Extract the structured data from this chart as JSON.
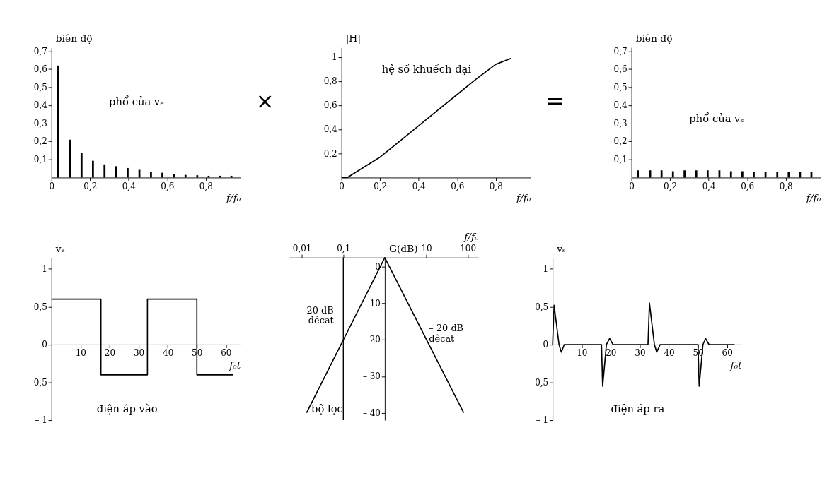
{
  "chart_data": [
    {
      "type": "bar",
      "ylabel": "biên độ",
      "xlabel": "f/f₀",
      "annotations": [
        "phổ của vₑ",
        "×"
      ],
      "color": "#000000",
      "x": [
        0.033,
        0.097,
        0.156,
        0.215,
        0.275,
        0.336,
        0.395,
        0.456,
        0.516,
        0.575,
        0.634,
        0.695,
        0.756,
        0.815,
        0.874,
        0.933
      ],
      "values": [
        0.62,
        0.21,
        0.135,
        0.093,
        0.073,
        0.063,
        0.053,
        0.043,
        0.033,
        0.027,
        0.02,
        0.015,
        0.013,
        0.01,
        0.01,
        0.01
      ],
      "xlim": [
        0,
        0.98
      ],
      "ylim": [
        0,
        0.72
      ],
      "xticks": [
        0,
        {
          "value": 0.2,
          "label": "0,2"
        },
        {
          "value": 0.4,
          "label": "0,4"
        },
        {
          "value": 0.6,
          "label": "0,6"
        },
        {
          "value": 0.8,
          "label": "0,8"
        }
      ],
      "yticks": [
        {
          "value": 0.1,
          "label": "0,1"
        },
        {
          "value": 0.2,
          "label": "0,2"
        },
        {
          "value": 0.3,
          "label": "0,3"
        },
        {
          "value": 0.4,
          "label": "0,4"
        },
        {
          "value": 0.5,
          "label": "0,5"
        },
        {
          "value": 0.6,
          "label": "0,6"
        },
        {
          "value": 0.7,
          "label": "0,7"
        }
      ]
    },
    {
      "type": "line",
      "ylabel": "|H|",
      "xlabel": "f/f₀",
      "annotations": [
        "hệ số khuếch đại",
        "="
      ],
      "color": "#000000",
      "x": [
        0,
        0.03,
        0.1,
        0.2,
        0.3,
        0.4,
        0.5,
        0.6,
        0.7,
        0.8,
        0.88
      ],
      "values": [
        0,
        0,
        0.07,
        0.17,
        0.3,
        0.43,
        0.56,
        0.69,
        0.82,
        0.94,
        0.99
      ],
      "xlim": [
        0,
        0.98
      ],
      "ylim": [
        0,
        1.08
      ],
      "xticks": [
        0,
        {
          "value": 0.2,
          "label": "0,2"
        },
        {
          "value": 0.4,
          "label": "0,4"
        },
        {
          "value": 0.6,
          "label": "0,6"
        },
        {
          "value": 0.8,
          "label": "0,8"
        }
      ],
      "yticks": [
        {
          "value": 0.2,
          "label": "0,2"
        },
        {
          "value": 0.4,
          "label": "0,4"
        },
        {
          "value": 0.6,
          "label": "0,6"
        },
        {
          "value": 0.8,
          "label": "0,8"
        },
        1
      ]
    },
    {
      "type": "bar",
      "ylabel": "biên độ",
      "xlabel": "f/f₀",
      "annotations": [
        "phổ của vₛ"
      ],
      "color": "#000000",
      "x": [
        0.033,
        0.097,
        0.156,
        0.215,
        0.275,
        0.336,
        0.395,
        0.456,
        0.516,
        0.575,
        0.634,
        0.695,
        0.756,
        0.815,
        0.874,
        0.933
      ],
      "values": [
        0.04,
        0.04,
        0.04,
        0.035,
        0.04,
        0.04,
        0.04,
        0.04,
        0.035,
        0.035,
        0.03,
        0.03,
        0.03,
        0.03,
        0.03,
        0.03
      ],
      "xlim": [
        0,
        0.98
      ],
      "ylim": [
        0,
        0.72
      ],
      "xticks": [
        0,
        {
          "value": 0.2,
          "label": "0,2"
        },
        {
          "value": 0.4,
          "label": "0,4"
        },
        {
          "value": 0.6,
          "label": "0,6"
        },
        {
          "value": 0.8,
          "label": "0,8"
        }
      ],
      "yticks": [
        {
          "value": 0.1,
          "label": "0,1"
        },
        {
          "value": 0.2,
          "label": "0,2"
        },
        {
          "value": 0.3,
          "label": "0,3"
        },
        {
          "value": 0.4,
          "label": "0,4"
        },
        {
          "value": 0.5,
          "label": "0,5"
        },
        {
          "value": 0.6,
          "label": "0,6"
        },
        {
          "value": 0.7,
          "label": "0,7"
        }
      ]
    },
    {
      "type": "line",
      "ylabel": "vₑ",
      "xlabel": "f₀t",
      "annotations": [
        "điện áp vào"
      ],
      "color": "#000000",
      "x": [
        0,
        17,
        17,
        33,
        33,
        50,
        50,
        62.5
      ],
      "values": [
        0.6,
        0.6,
        -0.4,
        -0.4,
        0.6,
        0.6,
        -0.4,
        -0.4
      ],
      "xlim": [
        0,
        65
      ],
      "ylim": [
        -1,
        1.15
      ],
      "xticks": [
        10,
        20,
        30,
        40,
        50,
        60
      ],
      "yticks": [
        {
          "value": -1,
          "label": "– 1"
        },
        {
          "value": -0.5,
          "label": "– 0,5"
        },
        0,
        {
          "value": 0.5,
          "label": "0,5"
        },
        1
      ]
    },
    {
      "type": "line",
      "ylabel": "G(dB)",
      "xlabel": "f/f₀",
      "log": "x",
      "color": "#000000",
      "annotations": [
        "bộ lọc",
        {
          "text": "20 dB\ndêcat",
          "x": 0.25,
          "y": -12
        },
        {
          "text": "– 20 dB\ndêcat",
          "x": 7,
          "y": -17
        }
      ],
      "x": [
        0.013,
        1,
        80
      ],
      "values": [
        -40,
        2.5,
        -40
      ],
      "xlim": [
        0.005,
        180
      ],
      "ylim": [
        -42,
        2.5
      ],
      "xticks": [
        {
          "value": 0.01,
          "label": "0,01"
        },
        {
          "value": 0.1,
          "label": "0,1"
        },
        10,
        100
      ],
      "yticks": [
        {
          "value": -40,
          "label": "– 40"
        },
        {
          "value": -30,
          "label": "– 30"
        },
        {
          "value": -20,
          "label": "– 20"
        },
        {
          "value": -10,
          "label": "– 10"
        },
        0
      ],
      "ref_lines": [
        {
          "axis": "x",
          "value": 0.1,
          "color": "#000000"
        }
      ]
    },
    {
      "type": "line",
      "ylabel": "vₛ",
      "xlabel": "f₀t",
      "annotations": [
        "điện áp ra"
      ],
      "color": "#000000",
      "x": [
        0,
        0.5,
        2.2,
        3,
        4,
        16.8,
        17.2,
        18.5,
        19.6,
        20.8,
        32.8,
        33.3,
        35,
        35.8,
        37,
        50,
        50.4,
        51.7,
        52.6,
        53.8,
        62.6
      ],
      "values": [
        0,
        0.52,
        0,
        -0.1,
        0,
        0,
        -0.55,
        0,
        0.08,
        0,
        0,
        0.55,
        0,
        -0.1,
        0,
        0,
        -0.55,
        0,
        0.08,
        0,
        0
      ],
      "xlim": [
        0,
        65
      ],
      "ylim": [
        -1,
        1.15
      ],
      "xticks": [
        10,
        20,
        30,
        40,
        50,
        60
      ],
      "yticks": [
        {
          "value": -1,
          "label": "– 1"
        },
        {
          "value": -0.5,
          "label": "– 0,5"
        },
        0,
        {
          "value": 0.5,
          "label": "0,5"
        },
        1
      ]
    }
  ]
}
